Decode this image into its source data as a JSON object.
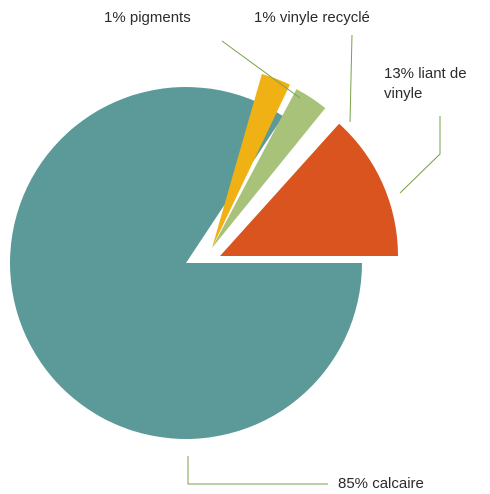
{
  "chart_data": {
    "type": "pie",
    "title": "",
    "legend": "none",
    "series": [
      {
        "label": "85% calcaire",
        "value": 85,
        "color": "#5b9a98"
      },
      {
        "label": "13% liant de vinyle",
        "value": 13,
        "color": "#d9541e"
      },
      {
        "label": "1% vinyle recyclé",
        "value": 1,
        "color": "#a8c27a"
      },
      {
        "label": "1% pigments",
        "value": 1,
        "color": "#efb114"
      }
    ],
    "leader_line_color": "#7aa14a"
  }
}
